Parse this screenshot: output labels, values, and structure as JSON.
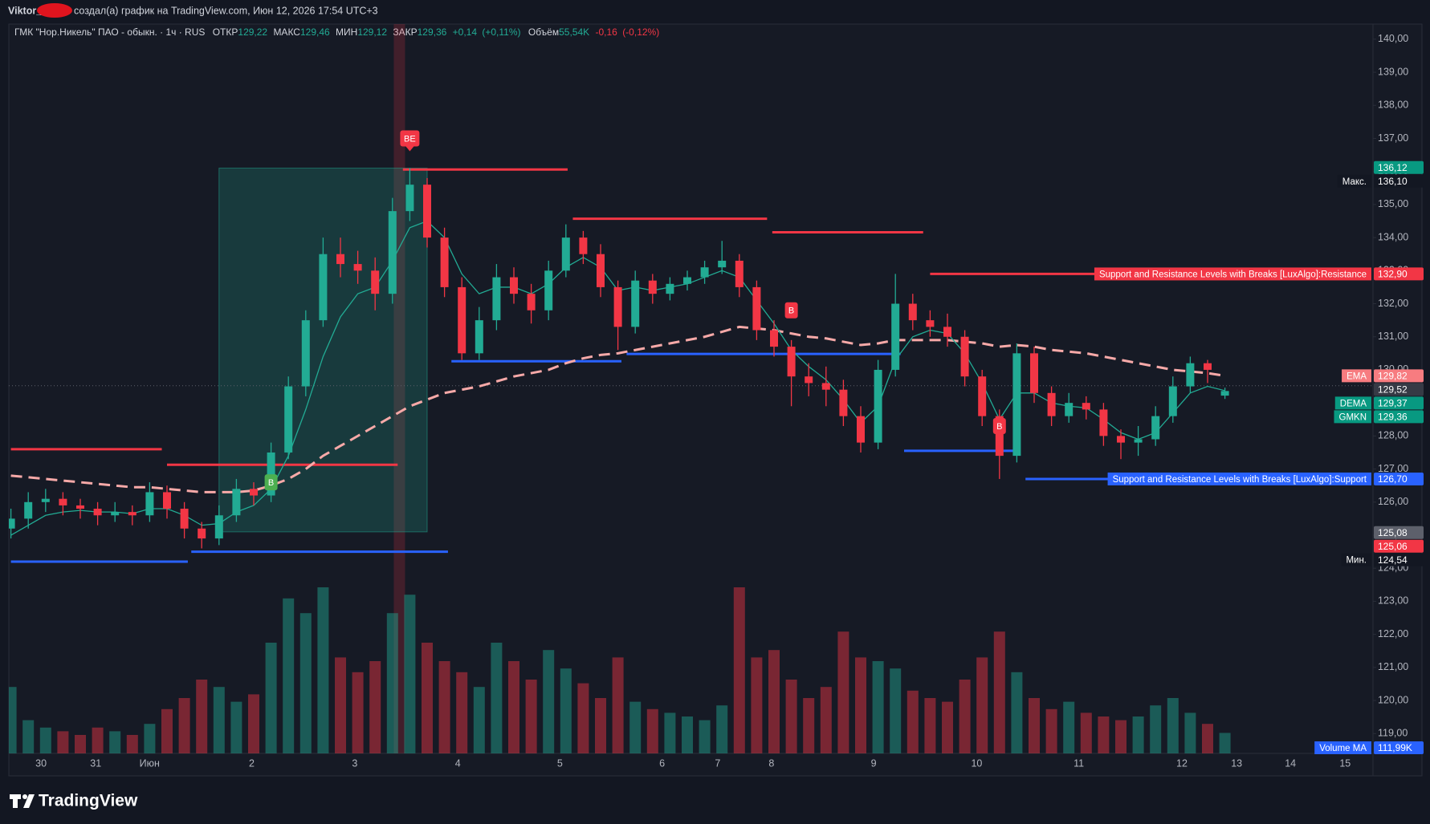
{
  "header": {
    "author": "Viktor_",
    "text": "создал(а) график на TradingView.com, Июн 12, 2026 17:54 UTC+3"
  },
  "footer": {
    "brand": "TradingView"
  },
  "chart_data": {
    "type": "candlestick",
    "symbol": "ГМК \"Нор.Никель\" ПАО - обыкн. · 1ч · RUS",
    "ohlc": [
      {
        "name": "ОТКР",
        "value": 129.22,
        "label": "129,22"
      },
      {
        "name": "МАКС",
        "value": 129.46,
        "label": "129,46"
      },
      {
        "name": "МИН",
        "value": 129.12,
        "label": "129,12"
      },
      {
        "name": "ЗАКР",
        "value": 129.36,
        "label": "129,36"
      }
    ],
    "change": {
      "value": 0.14,
      "label": "+0,14"
    },
    "change_pct": {
      "value": 0.11,
      "label": "(+0,11%)"
    },
    "volume_info": {
      "name": "Объём",
      "value": 55.54,
      "label": "55,54K"
    },
    "volume_change": {
      "value": -0.16,
      "label": "-0,16"
    },
    "volume_change_pct": {
      "value": -0.12,
      "label": "(-0,12%)"
    },
    "ylim": [
      118.4,
      140.36
    ],
    "yticks": [
      {
        "value": 140,
        "label": "140,00"
      },
      {
        "value": 139,
        "label": "139,00"
      },
      {
        "value": 138,
        "label": "138,00"
      },
      {
        "value": 137,
        "label": "137,00"
      },
      {
        "value": 136,
        "label": "136,00"
      },
      {
        "value": 135,
        "label": "135,00"
      },
      {
        "value": 134,
        "label": "134,00"
      },
      {
        "value": 133,
        "label": "133,00"
      },
      {
        "value": 132,
        "label": "132,00"
      },
      {
        "value": 131,
        "label": "131,00"
      },
      {
        "value": 130,
        "label": "130,00"
      },
      {
        "value": 129,
        "label": "129,00"
      },
      {
        "value": 128,
        "label": "128,00"
      },
      {
        "value": 127,
        "label": "127,00"
      },
      {
        "value": 126,
        "label": "126,00"
      },
      {
        "value": 125,
        "label": "125,00"
      },
      {
        "value": 124,
        "label": "124,00"
      },
      {
        "value": 123,
        "label": "123,00"
      },
      {
        "value": 122,
        "label": "122,00"
      },
      {
        "value": 121,
        "label": "121,00"
      },
      {
        "value": 120,
        "label": "120,00"
      },
      {
        "value": 119,
        "label": "119,00"
      }
    ],
    "x_labels": [
      "30",
      "31",
      "Июн",
      "2",
      "3",
      "4",
      "5",
      "6",
      "7",
      "8",
      "9",
      "10",
      "11",
      "12",
      "13",
      "14",
      "15"
    ],
    "up_color": "#22ab94",
    "down_color": "#f23645",
    "candles": [
      [
        125.2,
        125.8,
        124.9,
        125.5
      ],
      [
        125.5,
        126.3,
        125.2,
        126.0
      ],
      [
        126.0,
        126.4,
        125.7,
        126.1
      ],
      [
        126.1,
        126.3,
        125.6,
        125.9
      ],
      [
        125.9,
        126.1,
        125.5,
        125.8
      ],
      [
        125.8,
        126.0,
        125.3,
        125.6
      ],
      [
        125.6,
        126.0,
        125.4,
        125.7
      ],
      [
        125.7,
        125.9,
        125.3,
        125.6
      ],
      [
        125.6,
        126.6,
        125.4,
        126.3
      ],
      [
        126.3,
        126.5,
        125.5,
        125.8
      ],
      [
        125.8,
        126.0,
        124.9,
        125.2
      ],
      [
        125.2,
        125.4,
        124.6,
        124.9
      ],
      [
        124.9,
        125.9,
        124.7,
        125.6
      ],
      [
        125.6,
        126.7,
        125.4,
        126.4
      ],
      [
        126.4,
        126.6,
        125.9,
        126.2
      ],
      [
        126.2,
        127.8,
        126.0,
        127.5
      ],
      [
        127.5,
        129.8,
        127.3,
        129.5
      ],
      [
        129.5,
        131.8,
        129.2,
        131.5
      ],
      [
        131.5,
        134.0,
        131.3,
        133.5
      ],
      [
        133.5,
        134.0,
        132.8,
        133.2
      ],
      [
        133.2,
        133.6,
        132.6,
        133.0
      ],
      [
        133.0,
        133.4,
        131.8,
        132.3
      ],
      [
        132.3,
        135.2,
        132.0,
        134.8
      ],
      [
        134.8,
        136.1,
        134.5,
        135.6
      ],
      [
        135.6,
        135.8,
        133.7,
        134.0
      ],
      [
        134.0,
        134.3,
        132.2,
        132.5
      ],
      [
        132.5,
        132.8,
        130.3,
        130.5
      ],
      [
        130.5,
        131.9,
        130.3,
        131.5
      ],
      [
        131.5,
        133.2,
        131.2,
        132.8
      ],
      [
        132.8,
        133.1,
        132.0,
        132.3
      ],
      [
        132.3,
        132.6,
        131.4,
        131.8
      ],
      [
        131.8,
        133.3,
        131.5,
        133.0
      ],
      [
        133.0,
        134.4,
        132.8,
        134.0
      ],
      [
        134.0,
        134.2,
        133.2,
        133.5
      ],
      [
        133.5,
        133.8,
        132.2,
        132.5
      ],
      [
        132.5,
        132.7,
        130.6,
        131.3
      ],
      [
        131.3,
        133.0,
        131.1,
        132.7
      ],
      [
        132.7,
        132.9,
        132.0,
        132.3
      ],
      [
        132.3,
        132.8,
        132.1,
        132.6
      ],
      [
        132.6,
        133.0,
        132.4,
        132.8
      ],
      [
        132.8,
        133.3,
        132.6,
        133.1
      ],
      [
        133.1,
        133.9,
        132.9,
        133.3
      ],
      [
        133.3,
        133.5,
        132.2,
        132.5
      ],
      [
        132.5,
        132.7,
        130.9,
        131.2
      ],
      [
        131.2,
        131.5,
        130.4,
        130.7
      ],
      [
        130.7,
        130.9,
        128.9,
        129.8
      ],
      [
        129.8,
        130.2,
        129.2,
        129.6
      ],
      [
        129.6,
        130.1,
        128.9,
        129.4
      ],
      [
        129.4,
        129.7,
        128.3,
        128.6
      ],
      [
        128.6,
        128.9,
        127.5,
        127.8
      ],
      [
        127.8,
        130.3,
        127.6,
        130.0
      ],
      [
        130.0,
        132.9,
        129.8,
        132.0
      ],
      [
        132.0,
        132.3,
        131.2,
        131.5
      ],
      [
        131.5,
        131.8,
        131.0,
        131.3
      ],
      [
        131.3,
        131.7,
        130.7,
        131.0
      ],
      [
        131.0,
        131.2,
        129.5,
        129.8
      ],
      [
        129.8,
        130.0,
        128.3,
        128.6
      ],
      [
        128.6,
        128.8,
        126.7,
        127.4
      ],
      [
        127.4,
        130.8,
        127.2,
        130.5
      ],
      [
        130.5,
        130.7,
        129.0,
        129.3
      ],
      [
        129.3,
        129.5,
        128.3,
        128.6
      ],
      [
        128.6,
        129.3,
        128.4,
        129.0
      ],
      [
        129.0,
        129.2,
        128.5,
        128.8
      ],
      [
        128.8,
        129.0,
        127.7,
        128.0
      ],
      [
        128.0,
        128.2,
        127.3,
        127.8
      ],
      [
        127.8,
        128.3,
        127.4,
        127.9
      ],
      [
        127.9,
        128.9,
        127.7,
        128.6
      ],
      [
        128.6,
        129.8,
        128.4,
        129.5
      ],
      [
        129.5,
        130.4,
        129.3,
        130.2
      ],
      [
        130.2,
        130.3,
        129.6,
        130.0
      ],
      [
        129.22,
        129.46,
        129.12,
        129.36
      ]
    ],
    "volume": [
      180,
      90,
      70,
      60,
      50,
      70,
      60,
      50,
      80,
      120,
      150,
      200,
      180,
      140,
      160,
      300,
      420,
      380,
      450,
      260,
      220,
      250,
      380,
      430,
      300,
      250,
      220,
      180,
      300,
      250,
      200,
      280,
      230,
      190,
      150,
      260,
      140,
      120,
      110,
      100,
      90,
      130,
      450,
      260,
      280,
      200,
      150,
      180,
      330,
      260,
      250,
      230,
      170,
      150,
      140,
      200,
      260,
      330,
      220,
      150,
      120,
      140,
      110,
      100,
      90,
      100,
      130,
      150,
      110,
      80,
      55.54
    ],
    "series": [
      {
        "name": "EMA",
        "color": "#f7a9a8",
        "style": "dashed",
        "values": [
          126.8,
          126.75,
          126.7,
          126.65,
          126.6,
          126.55,
          126.5,
          126.45,
          126.45,
          126.4,
          126.35,
          126.3,
          126.3,
          126.3,
          126.35,
          126.5,
          126.7,
          127.0,
          127.4,
          127.7,
          128.0,
          128.3,
          128.6,
          128.9,
          129.1,
          129.3,
          129.4,
          129.5,
          129.65,
          129.8,
          129.9,
          130.0,
          130.2,
          130.35,
          130.45,
          130.5,
          130.6,
          130.7,
          130.8,
          130.9,
          131.0,
          131.15,
          131.3,
          131.25,
          131.2,
          131.1,
          131.0,
          130.95,
          130.85,
          130.75,
          130.8,
          130.9,
          130.9,
          130.9,
          130.9,
          130.85,
          130.8,
          130.7,
          130.75,
          130.7,
          130.6,
          130.55,
          130.5,
          130.4,
          130.3,
          130.2,
          130.1,
          130.0,
          129.95,
          129.9,
          129.82
        ]
      },
      {
        "name": "DEMA",
        "color": "#22ab94",
        "style": "solid",
        "values": [
          125.0,
          125.3,
          125.6,
          125.7,
          125.75,
          125.7,
          125.7,
          125.65,
          125.8,
          125.8,
          125.6,
          125.3,
          125.35,
          125.7,
          125.9,
          126.4,
          127.4,
          128.8,
          130.4,
          131.6,
          132.3,
          132.5,
          133.3,
          134.3,
          134.5,
          134.0,
          132.9,
          132.3,
          132.5,
          132.5,
          132.3,
          132.6,
          133.1,
          133.4,
          133.1,
          132.4,
          132.5,
          132.4,
          132.5,
          132.6,
          132.8,
          133.0,
          132.8,
          132.1,
          131.4,
          130.6,
          130.1,
          129.7,
          129.1,
          128.4,
          128.9,
          130.3,
          131.0,
          131.2,
          131.1,
          130.5,
          129.6,
          128.5,
          129.3,
          129.3,
          129.0,
          128.9,
          128.85,
          128.5,
          128.1,
          127.9,
          128.1,
          128.7,
          129.3,
          129.5,
          129.37
        ]
      }
    ],
    "levels": [
      {
        "kind": "resistance",
        "price": 127.6,
        "from": 0,
        "to": 8.7
      },
      {
        "kind": "resistance",
        "price": 127.13,
        "from": 9,
        "to": 22.3
      },
      {
        "kind": "resistance",
        "price": 136.06,
        "from": 22.6,
        "to": 32.1
      },
      {
        "kind": "resistance",
        "price": 134.57,
        "from": 32.4,
        "to": 43.6
      },
      {
        "kind": "resistance",
        "price": 134.16,
        "from": 43.9,
        "to": 52.6
      },
      {
        "kind": "resistance",
        "price": 132.9,
        "from": 53,
        "to": 78.3
      },
      {
        "kind": "support",
        "price": 124.2,
        "from": 0,
        "to": 10.2
      },
      {
        "kind": "support",
        "price": 124.5,
        "from": 10.4,
        "to": 25.2
      },
      {
        "kind": "support",
        "price": 130.26,
        "from": 25.4,
        "to": 35.2
      },
      {
        "kind": "support",
        "price": 130.48,
        "from": 35.5,
        "to": 51.3
      },
      {
        "kind": "support",
        "price": 127.55,
        "from": 51.5,
        "to": 58.2
      },
      {
        "kind": "support",
        "price": 126.7,
        "from": 58.5,
        "to": 78.3
      }
    ],
    "markers": [
      {
        "label": "BE",
        "index": 23,
        "price": 137.0,
        "color": "#f23645"
      },
      {
        "label": "B",
        "index": 15,
        "price": 126.6,
        "color": "#4caf50"
      },
      {
        "label": "B",
        "index": 45,
        "price": 131.8,
        "color": "#f23645"
      },
      {
        "label": "B",
        "index": 57,
        "price": 128.3,
        "color": "#f23645"
      }
    ],
    "position_box": {
      "from": 12,
      "to": 24,
      "top": 136.1,
      "bottom": 125.1
    },
    "highlight_index": 22.4,
    "last_price_index": 4,
    "price_labels": [
      {
        "value": 136.12,
        "label": "136,12",
        "color": "#089981"
      },
      {
        "name": "Макс.",
        "value": 136.1,
        "label": "136,10",
        "color": "#131722"
      },
      {
        "name": "Support and Resistance Levels with Breaks [LuxAlgo]:Resistance",
        "value": 132.9,
        "label": "132,90",
        "color": "#f23645"
      },
      {
        "name": "EMA",
        "value": 129.82,
        "label": "129,82",
        "color": "#f77c80"
      },
      {
        "value": 129.52,
        "label": "129,52",
        "color": "#363a45"
      },
      {
        "name": "DEMA",
        "value": 129.37,
        "label": "129,37",
        "color": "#089981"
      },
      {
        "name": "GMKN",
        "value": 129.36,
        "label": "129,36",
        "color": "#089981"
      },
      {
        "name": "Support and Resistance Levels with Breaks [LuxAlgo]:Support",
        "value": 126.7,
        "label": "126,70",
        "color": "#2962ff"
      },
      {
        "value": 125.08,
        "label": "125,08",
        "color": "#5d606b"
      },
      {
        "value": 125.06,
        "label": "125,06",
        "color": "#f23645"
      },
      {
        "name": "Мин.",
        "value": 124.54,
        "label": "124,54",
        "color": "#131722"
      }
    ],
    "volume_ma": {
      "name": "Volume MA",
      "value": 111.99,
      "label": "111,99K",
      "color": "#2962ff"
    }
  }
}
